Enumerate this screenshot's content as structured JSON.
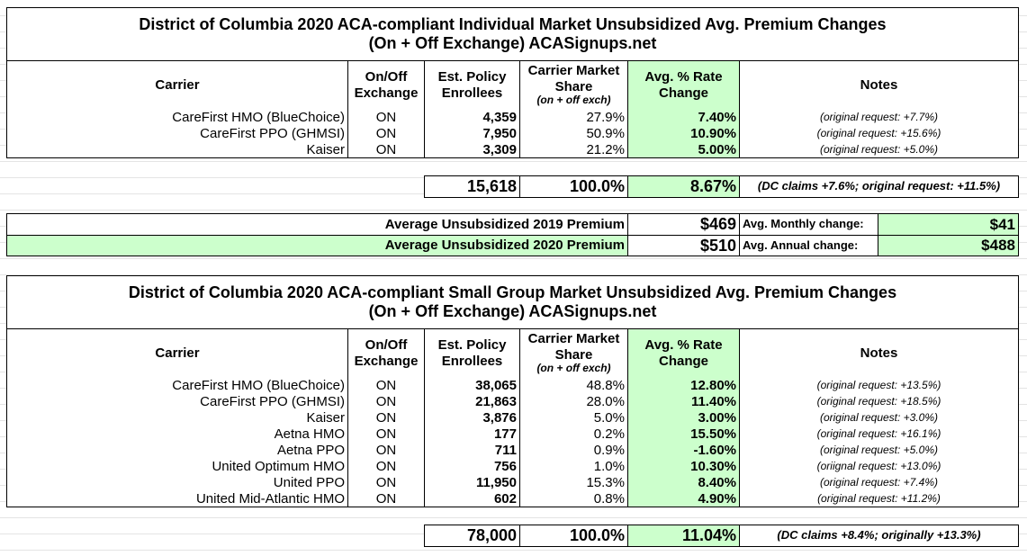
{
  "tables": [
    {
      "title": [
        "District of Columbia 2020 ACA-compliant Individual Market Unsubsidized Avg. Premium Changes",
        "(On + Off Exchange) ACASignups.net"
      ],
      "headers": {
        "carrier": "Carrier",
        "exchange": "On/Off Exchange",
        "enrollees": "Est. Policy Enrollees",
        "share": "Carrier Market Share",
        "share_note": "(on + off exch)",
        "rate": "Avg. % Rate Change",
        "notes": "Notes"
      },
      "rows": [
        [
          "CareFirst HMO (BlueChoice)",
          "ON",
          "4,359",
          "27.9%",
          "7.40%",
          "(original request: +7.7%)"
        ],
        [
          "CareFirst PPO (GHMSI)",
          "ON",
          "7,950",
          "50.9%",
          "10.90%",
          "(original request: +15.6%)"
        ],
        [
          "Kaiser",
          "ON",
          "3,309",
          "21.2%",
          "5.00%",
          "(original request: +5.0%)"
        ]
      ],
      "total": {
        "enrollees": "15,618",
        "share": "100.0%",
        "rate": "8.67%",
        "note": "(DC claims +7.6%; original request: +11.5%)"
      }
    },
    {
      "title": [
        "District of Columbia 2020 ACA-compliant Small Group Market Unsubsidized Avg. Premium Changes",
        "(On + Off Exchange) ACASignups.net"
      ],
      "headers": {
        "carrier": "Carrier",
        "exchange": "On/Off Exchange",
        "enrollees": "Est. Policy Enrollees",
        "share": "Carrier Market Share",
        "share_note": "(on + off exch)",
        "rate": "Avg. % Rate Change",
        "notes": "Notes"
      },
      "rows": [
        [
          "CareFirst HMO (BlueChoice)",
          "ON",
          "38,065",
          "48.8%",
          "12.80%",
          "(original request: +13.5%)"
        ],
        [
          "CareFirst PPO (GHMSI)",
          "ON",
          "21,863",
          "28.0%",
          "11.40%",
          "(original request: +18.5%)"
        ],
        [
          "Kaiser",
          "ON",
          "3,876",
          "5.0%",
          "3.00%",
          "(original request: +3.0%)"
        ],
        [
          "Aetna HMO",
          "ON",
          "177",
          "0.2%",
          "15.50%",
          "(original request: +16.1%)"
        ],
        [
          "Aetna PPO",
          "ON",
          "711",
          "0.9%",
          "-1.60%",
          "(original request: +5.0%)"
        ],
        [
          "United Optimum HMO",
          "ON",
          "756",
          "1.0%",
          "10.30%",
          "(oriignal request: +13.0%)"
        ],
        [
          "United PPO",
          "ON",
          "11,950",
          "15.3%",
          "8.40%",
          "(original request: +7.4%)"
        ],
        [
          "United Mid-Atlantic HMO",
          "ON",
          "602",
          "0.8%",
          "4.90%",
          "(original request: +11.2%)"
        ]
      ],
      "total": {
        "enrollees": "78,000",
        "share": "100.0%",
        "rate": "11.04%",
        "note": "(DC claims +8.4%; originally +13.3%)"
      }
    }
  ],
  "premiums": [
    {
      "label": "Average Unsubsidized 2019 Premium",
      "value": "$469",
      "change_label": "Avg. Monthly change:",
      "change": "$41"
    },
    {
      "label": "Average Unsubsidized 2020 Premium",
      "value": "$510",
      "change_label": "Avg. Annual change:",
      "change": "$488"
    }
  ]
}
